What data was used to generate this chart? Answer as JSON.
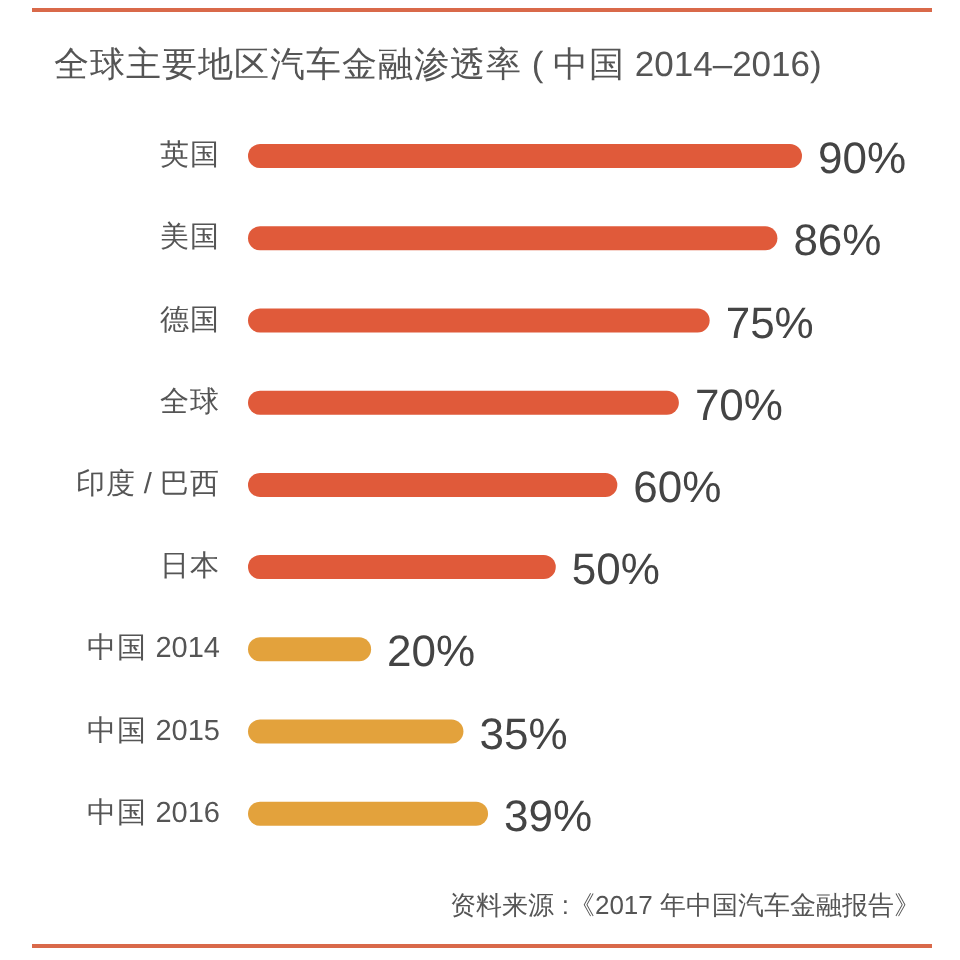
{
  "chart_data": {
    "type": "bar",
    "orientation": "horizontal",
    "title": "全球主要地区汽车金融渗透率 ( 中国 2014–2016)",
    "categories": [
      "英国",
      "美国",
      "德国",
      "全球",
      "印度 / 巴西",
      "日本",
      "中国 2014",
      "中国 2015",
      "中国 2016"
    ],
    "values": [
      90,
      86,
      75,
      70,
      60,
      50,
      20,
      35,
      39
    ],
    "colors": [
      "#e05a3a",
      "#e05a3a",
      "#e05a3a",
      "#e05a3a",
      "#e05a3a",
      "#e05a3a",
      "#e3a23c",
      "#e3a23c",
      "#e3a23c"
    ],
    "value_labels": [
      "90%",
      "86%",
      "75%",
      "70%",
      "60%",
      "50%",
      "20%",
      "35%",
      "39%"
    ],
    "annotations": [
      "资料来源 :《2017 年中国汽车金融报告》"
    ]
  }
}
